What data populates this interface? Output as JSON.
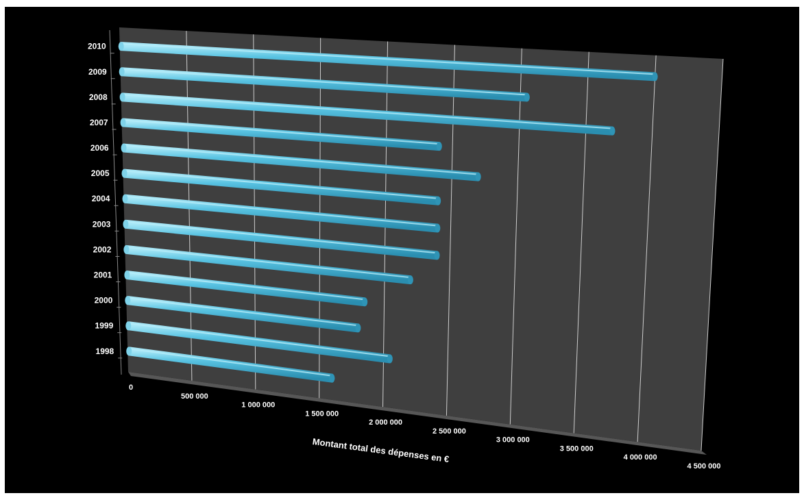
{
  "chart_data": {
    "type": "bar",
    "orientation": "horizontal",
    "style": "3d-cylinder",
    "categories": [
      "1998",
      "1999",
      "2000",
      "2001",
      "2002",
      "2003",
      "2004",
      "2005",
      "2006",
      "2007",
      "2008",
      "2009",
      "2010"
    ],
    "values": [
      1600000,
      2050000,
      1800000,
      1850000,
      2200000,
      2400000,
      2400000,
      2400000,
      2700000,
      2400000,
      3700000,
      3050000,
      4000000
    ],
    "xlabel": "Montant total des dépenses en €",
    "ylabel": "",
    "xlim": [
      0,
      4500000
    ],
    "x_ticks": [
      "0",
      "500 000",
      "1 000 000",
      "1 500 000",
      "2 000 000",
      "2 500 000",
      "3 000 000",
      "3 500 000",
      "4 000 000",
      "4 500 000"
    ],
    "grid": true,
    "legend": "none",
    "colors": {
      "background": "#000000",
      "plot": "#3f3f3f",
      "bar": "#4db8d8",
      "gridline": "#cfcfcf",
      "text": "#ffffff"
    }
  }
}
